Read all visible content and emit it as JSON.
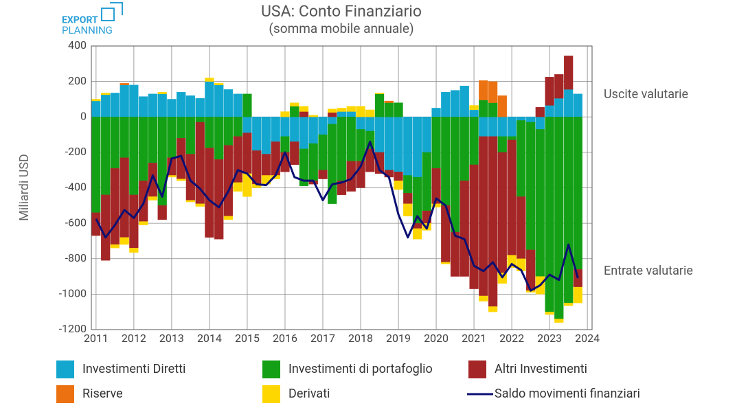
{
  "logo": [
    "EXPORT",
    "PLANNING"
  ],
  "chart_data": {
    "type": "bar",
    "stacked": true,
    "title": "USA: Conto Finanziario",
    "subtitle": "(somma mobile annuale)",
    "y_label": "Miliardi USD",
    "annotations": [
      "Uscite valutarie",
      "Entrate valutarie"
    ],
    "x": [
      2011,
      2011.25,
      2011.5,
      2011.75,
      2012,
      2012.25,
      2012.5,
      2012.75,
      2013,
      2013.25,
      2013.5,
      2013.75,
      2014,
      2014.25,
      2014.5,
      2014.75,
      2015,
      2015.25,
      2015.5,
      2015.75,
      2016,
      2016.25,
      2016.5,
      2016.75,
      2017,
      2017.25,
      2017.5,
      2017.75,
      2018,
      2018.25,
      2018.5,
      2018.75,
      2019,
      2019.25,
      2019.5,
      2019.75,
      2020,
      2020.25,
      2020.5,
      2020.75,
      2021,
      2021.25,
      2021.5,
      2021.75,
      2022,
      2022.25,
      2022.5,
      2022.75,
      2023,
      2023.25,
      2023.5,
      2023.75
    ],
    "xlim": [
      2010.875,
      2024.125
    ],
    "xticks": [
      2011,
      2012,
      2013,
      2014,
      2015,
      2016,
      2017,
      2018,
      2019,
      2020,
      2021,
      2022,
      2023,
      2024
    ],
    "ylim": [
      -1200,
      400
    ],
    "yticks": [
      -1200,
      -1000,
      -800,
      -600,
      -400,
      -200,
      0,
      200,
      400
    ],
    "grid": true,
    "series": [
      {
        "name": "Investimenti Diretti",
        "color": "#13a7cf",
        "values": [
          90,
          125,
          135,
          180,
          180,
          115,
          130,
          130,
          100,
          140,
          120,
          105,
          200,
          180,
          155,
          130,
          -90,
          -190,
          -210,
          -140,
          -110,
          -140,
          -180,
          -150,
          -100,
          -40,
          30,
          30,
          -70,
          -80,
          -200,
          -300,
          -310,
          -330,
          -340,
          -200,
          50,
          140,
          150,
          175,
          40,
          -110,
          -110,
          -110,
          -110,
          -20,
          -30,
          -70,
          65,
          105,
          155,
          130
        ]
      },
      {
        "name": "Investimenti di portafoglio",
        "color": "#14a016",
        "values": [
          -540,
          -440,
          -290,
          -230,
          -440,
          -360,
          -260,
          -500,
          -230,
          -120,
          -210,
          -30,
          -175,
          -240,
          -160,
          -110,
          130,
          0,
          0,
          0,
          -90,
          60,
          -210,
          -210,
          -200,
          -450,
          -360,
          -250,
          -180,
          -100,
          130,
          80,
          80,
          -100,
          -260,
          -330,
          -290,
          -500,
          -650,
          -360,
          -270,
          95,
          80,
          -90,
          -20,
          -430,
          -720,
          -830,
          -1100,
          -1140,
          -1050,
          -860
        ]
      },
      {
        "name": "Altri Investimenti",
        "color": "#a52626",
        "values": [
          -130,
          -370,
          -430,
          -450,
          -300,
          -230,
          -190,
          -80,
          -100,
          -230,
          -260,
          -460,
          -505,
          -450,
          -400,
          -260,
          -230,
          -190,
          -120,
          -190,
          -110,
          -130,
          30,
          -20,
          -50,
          25,
          -80,
          -170,
          -150,
          -130,
          -120,
          -40,
          -50,
          -60,
          -30,
          -70,
          -200,
          -320,
          -250,
          -540,
          -700,
          -900,
          -960,
          -680,
          -650,
          -350,
          -230,
          55,
          160,
          135,
          190,
          -100
        ]
      },
      {
        "name": "Riserve",
        "color": "#ec7110",
        "values": [
          0,
          0,
          0,
          10,
          0,
          0,
          0,
          0,
          0,
          0,
          0,
          0,
          0,
          0,
          0,
          0,
          0,
          0,
          0,
          0,
          0,
          0,
          0,
          0,
          0,
          0,
          0,
          0,
          0,
          0,
          0,
          10,
          0,
          0,
          0,
          0,
          0,
          0,
          0,
          0,
          0,
          110,
          120,
          120,
          0,
          0,
          0,
          0,
          0,
          0,
          0,
          0
        ]
      },
      {
        "name": "Derivati",
        "color": "#ffd700",
        "values": [
          10,
          10,
          -20,
          -40,
          -25,
          -20,
          -20,
          10,
          -10,
          -10,
          -10,
          -15,
          20,
          10,
          -20,
          -50,
          -130,
          -20,
          -50,
          -20,
          30,
          20,
          30,
          10,
          0,
          20,
          20,
          30,
          60,
          40,
          5,
          0,
          -50,
          -70,
          -60,
          -40,
          -20,
          -10,
          0,
          0,
          25,
          -30,
          -30,
          -60,
          -70,
          -70,
          -10,
          -100,
          -15,
          -20,
          -15,
          -90
        ]
      },
      {
        "name": "Saldo movimenti finanziari",
        "type": "line",
        "color": "#0b0f73",
        "values": [
          -575,
          -680,
          -610,
          -525,
          -570,
          -490,
          -330,
          -450,
          -235,
          -220,
          -360,
          -405,
          -470,
          -510,
          -420,
          -300,
          -320,
          -380,
          -385,
          -330,
          -200,
          -340,
          -360,
          -360,
          -470,
          -380,
          -370,
          -350,
          -280,
          -140,
          -300,
          -340,
          -550,
          -680,
          -560,
          -630,
          -460,
          -500,
          -670,
          -690,
          -840,
          -870,
          -820,
          -905,
          -830,
          -865,
          -980,
          -950,
          -890,
          -920,
          -720,
          -910
        ]
      }
    ]
  }
}
